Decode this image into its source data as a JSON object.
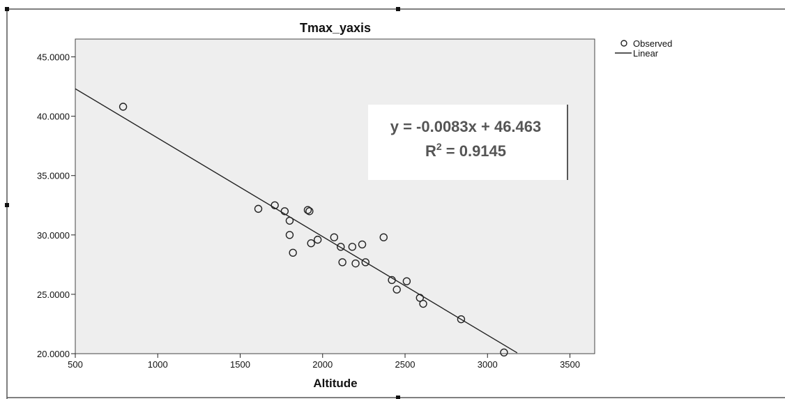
{
  "chart_data": {
    "type": "scatter",
    "title": "Tmax_yaxis",
    "xlabel": "Altitude",
    "ylabel": "",
    "xlim": [
      500,
      3650
    ],
    "ylim": [
      20,
      46.5
    ],
    "x_ticks": [
      500,
      1000,
      1500,
      2000,
      2500,
      3000,
      3500
    ],
    "x_tick_labels": [
      "500",
      "1000",
      "1500",
      "2000",
      "2500",
      "3000",
      "3500"
    ],
    "y_ticks": [
      20,
      25,
      30,
      35,
      40,
      45
    ],
    "y_tick_labels": [
      "20.0000",
      "25.0000",
      "30.0000",
      "35.0000",
      "40.0000",
      "45.0000"
    ],
    "grid": false,
    "legend": {
      "position": "top-right",
      "entries": [
        {
          "label": "Observed",
          "marker": "circle"
        },
        {
          "label": "Linear",
          "marker": "line"
        }
      ]
    },
    "series": [
      {
        "name": "Observed",
        "points": [
          {
            "x": 790,
            "y": 40.8
          },
          {
            "x": 1610,
            "y": 32.2
          },
          {
            "x": 1710,
            "y": 32.5
          },
          {
            "x": 1770,
            "y": 32.0
          },
          {
            "x": 1800,
            "y": 31.2
          },
          {
            "x": 1800,
            "y": 30.0
          },
          {
            "x": 1820,
            "y": 28.5
          },
          {
            "x": 1910,
            "y": 32.1
          },
          {
            "x": 1920,
            "y": 32.0
          },
          {
            "x": 1930,
            "y": 29.3
          },
          {
            "x": 1970,
            "y": 29.6
          },
          {
            "x": 2070,
            "y": 29.8
          },
          {
            "x": 2110,
            "y": 29.0
          },
          {
            "x": 2120,
            "y": 27.7
          },
          {
            "x": 2180,
            "y": 29.0
          },
          {
            "x": 2200,
            "y": 27.6
          },
          {
            "x": 2240,
            "y": 29.2
          },
          {
            "x": 2260,
            "y": 27.7
          },
          {
            "x": 2370,
            "y": 29.8
          },
          {
            "x": 2420,
            "y": 26.2
          },
          {
            "x": 2450,
            "y": 25.4
          },
          {
            "x": 2510,
            "y": 26.1
          },
          {
            "x": 2590,
            "y": 24.7
          },
          {
            "x": 2610,
            "y": 24.2
          },
          {
            "x": 2840,
            "y": 22.9
          },
          {
            "x": 3100,
            "y": 20.1
          }
        ]
      },
      {
        "name": "Linear",
        "type": "line",
        "slope": -0.0083,
        "intercept": 46.463,
        "x_range": [
          500,
          3180
        ]
      }
    ],
    "annotations": [
      {
        "text": "y = -0.0083x + 46.463"
      },
      {
        "text": "R",
        "sup": "2",
        "tail": " = 0.9145"
      }
    ]
  }
}
